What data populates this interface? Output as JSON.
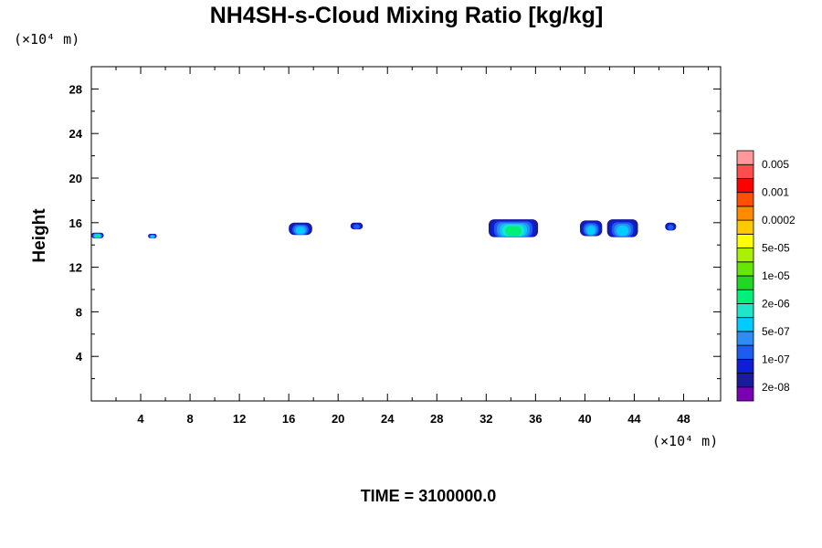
{
  "chart_data": {
    "type": "heatmap",
    "title": "NH4SH-s-Cloud Mixing Ratio [kg/kg]",
    "ylabel": "Height",
    "xlabel": "",
    "x_units": "(×10⁴ m)",
    "y_units": "(×10⁴ m)",
    "footer": "TIME = 3100000.0",
    "xlim": [
      0,
      51
    ],
    "ylim": [
      0,
      30
    ],
    "x_ticks": [
      4,
      8,
      12,
      16,
      20,
      24,
      28,
      32,
      36,
      40,
      44,
      48
    ],
    "y_ticks": [
      4,
      8,
      12,
      16,
      20,
      24,
      28
    ],
    "x_tick_labels": [
      "4",
      "8",
      "12",
      "16",
      "20",
      "24",
      "28",
      "32",
      "36",
      "40",
      "44",
      "48"
    ],
    "y_tick_labels": [
      "4",
      "8",
      "12",
      "16",
      "20",
      "24",
      "28"
    ],
    "colorbar": {
      "colors": [
        "#7a00b5",
        "#1a1a9c",
        "#0a1fd6",
        "#1c5cf0",
        "#2f8cf5",
        "#00ccff",
        "#1fe6c8",
        "#00f07a",
        "#22d622",
        "#66e600",
        "#aaf000",
        "#ffff00",
        "#ffc800",
        "#ff8c00",
        "#ff5000",
        "#ff0000",
        "#ff4d4d",
        "#ff9999"
      ],
      "labels": [
        "2e-08",
        "1e-07",
        "5e-07",
        "2e-06",
        "1e-05",
        "5e-05",
        "0.0002",
        "0.001",
        "0.005"
      ]
    },
    "clouds": [
      {
        "x": [
          0.0,
          1.0
        ],
        "y": [
          14.6,
          15.1
        ],
        "level": "2e-06"
      },
      {
        "x": [
          4.6,
          5.3
        ],
        "y": [
          14.6,
          15.0
        ],
        "level": "5e-07"
      },
      {
        "x": [
          16.0,
          17.9
        ],
        "y": [
          14.9,
          16.0
        ],
        "level": "5e-07"
      },
      {
        "x": [
          21.0,
          22.0
        ],
        "y": [
          15.4,
          16.0
        ],
        "level": "1e-07"
      },
      {
        "x": [
          32.2,
          36.2
        ],
        "y": [
          14.7,
          16.3
        ],
        "level": "2e-06"
      },
      {
        "x": [
          39.6,
          41.4
        ],
        "y": [
          14.8,
          16.2
        ],
        "level": "5e-07"
      },
      {
        "x": [
          41.8,
          44.3
        ],
        "y": [
          14.7,
          16.3
        ],
        "level": "5e-07"
      },
      {
        "x": [
          46.5,
          47.4
        ],
        "y": [
          15.3,
          16.0
        ],
        "level": "1e-07"
      }
    ]
  }
}
